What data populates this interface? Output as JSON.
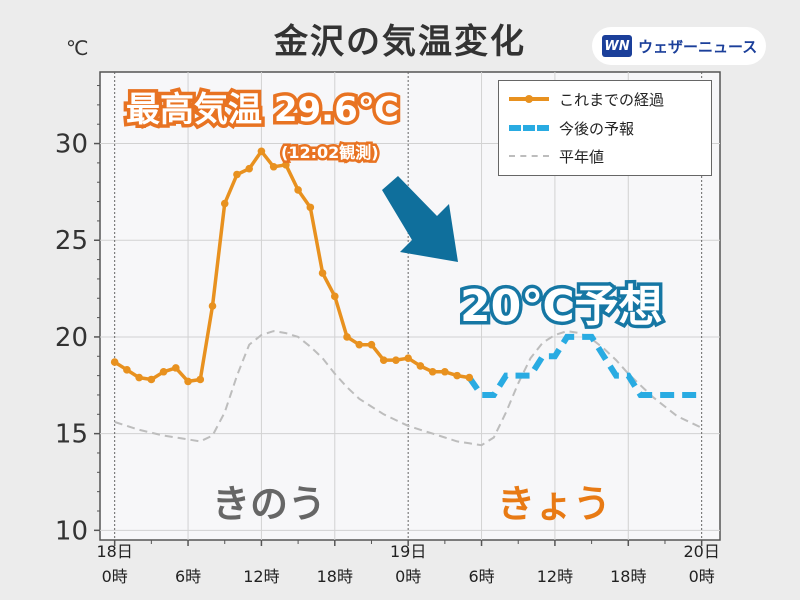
{
  "title": "金沢の気温変化",
  "unit_label": "℃",
  "brand": {
    "logo_text": "WN",
    "name": "ウェザーニュース"
  },
  "annotations": {
    "max_temp": "最高気温 29.6℃",
    "max_time": "(12:02観測)",
    "forecast": "20℃予想",
    "yesterday": "きのう",
    "today": "きょう"
  },
  "colors": {
    "observed": "#e8911f",
    "forecast": "#29abe2",
    "normal": "#bdbdbd",
    "arrow": "#0f6f9c",
    "max_outline": "#e87322",
    "forecast_outline": "#1677a4"
  },
  "chart_data": {
    "type": "line",
    "x_unit": "hours from 18日0時",
    "xlim": [
      -1.2,
      49.5
    ],
    "ylim": [
      9.5,
      33.7
    ],
    "yticks": [
      10,
      15,
      20,
      25,
      30
    ],
    "xticks": [
      {
        "x": 0,
        "line1": "18日",
        "line2": "0時"
      },
      {
        "x": 6,
        "line1": "",
        "line2": "6時"
      },
      {
        "x": 12,
        "line1": "",
        "line2": "12時"
      },
      {
        "x": 18,
        "line1": "",
        "line2": "18時"
      },
      {
        "x": 24,
        "line1": "19日",
        "line2": "0時"
      },
      {
        "x": 30,
        "line1": "",
        "line2": "6時"
      },
      {
        "x": 36,
        "line1": "",
        "line2": "12時"
      },
      {
        "x": 42,
        "line1": "",
        "line2": "18時"
      },
      {
        "x": 48,
        "line1": "20日",
        "line2": "0時"
      }
    ],
    "day_dividers": [
      0,
      24,
      48
    ],
    "minor_ticks": [
      3,
      9,
      15,
      21,
      27,
      33,
      39,
      45
    ],
    "grid": true,
    "legend": {
      "position": "top-right",
      "entries": [
        "これまでの経過",
        "今後の予報",
        "平年値"
      ]
    },
    "series": [
      {
        "name": "これまでの経過",
        "style": "solid-markers",
        "x": [
          0,
          1,
          2,
          3,
          4,
          5,
          6,
          7,
          8,
          9,
          10,
          11,
          12,
          13,
          14,
          15,
          16,
          17,
          18,
          19,
          20,
          21,
          22,
          23,
          24,
          25,
          26,
          27,
          28,
          29
        ],
        "y": [
          18.7,
          18.3,
          17.9,
          17.8,
          18.2,
          18.4,
          17.7,
          17.8,
          21.6,
          26.9,
          28.4,
          28.7,
          29.6,
          28.8,
          28.9,
          27.6,
          26.7,
          23.3,
          22.1,
          20.0,
          19.6,
          19.6,
          18.8,
          18.8,
          18.9,
          18.5,
          18.2,
          18.2,
          18.0,
          17.9
        ]
      },
      {
        "name": "今後の予報",
        "style": "dashed",
        "x": [
          29,
          30,
          31,
          32,
          33,
          34,
          35,
          36,
          37,
          38,
          39,
          40,
          41,
          42,
          43,
          44,
          45,
          46,
          47,
          48
        ],
        "y": [
          17.9,
          17.0,
          17.0,
          18.0,
          18.0,
          18.0,
          19.0,
          19.0,
          20.0,
          20.0,
          20.0,
          19.0,
          18.0,
          18.0,
          17.0,
          17.0,
          17.0,
          17.0,
          17.0,
          17.0
        ]
      },
      {
        "name": "平年値",
        "style": "dashed-thin",
        "x": [
          0,
          2,
          4,
          6,
          7,
          8,
          9,
          10,
          11,
          12,
          13,
          14,
          15,
          16,
          17,
          18,
          19,
          20,
          21,
          22,
          23,
          24,
          25,
          26,
          27,
          28,
          29,
          30,
          31,
          32,
          33,
          34,
          35,
          36,
          37,
          38,
          39,
          40,
          41,
          42,
          43,
          44,
          45,
          46,
          47,
          48
        ],
        "y": [
          15.6,
          15.2,
          14.9,
          14.7,
          14.6,
          14.9,
          16.1,
          18.0,
          19.6,
          20.1,
          20.3,
          20.2,
          20.0,
          19.5,
          18.9,
          18.1,
          17.4,
          16.8,
          16.4,
          16.0,
          15.7,
          15.4,
          15.2,
          15.0,
          14.8,
          14.6,
          14.5,
          14.4,
          14.8,
          16.1,
          17.6,
          18.9,
          19.7,
          20.1,
          20.3,
          20.2,
          19.9,
          19.4,
          18.8,
          18.1,
          17.5,
          16.9,
          16.4,
          15.9,
          15.6,
          15.3
        ]
      }
    ]
  }
}
